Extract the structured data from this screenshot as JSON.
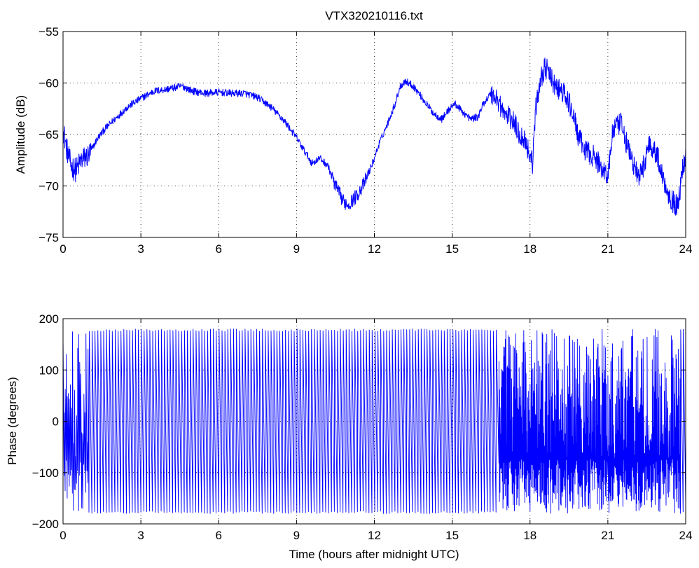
{
  "colors": {
    "series": "#0000ff",
    "axes": "#000000",
    "grid": "#000000",
    "background": "#ffffff"
  },
  "chart_data": [
    {
      "type": "line",
      "title": "VTX320210116.txt",
      "xlabel": "",
      "ylabel": "Amplitude (dB)",
      "xlim": [
        0,
        24
      ],
      "ylim": [
        -75,
        -55
      ],
      "x_ticks": [
        0,
        3,
        6,
        9,
        12,
        15,
        18,
        21,
        24
      ],
      "y_ticks": [
        -75,
        -70,
        -65,
        -60,
        -55
      ],
      "x_tick_labels": [
        "0",
        "3",
        "6",
        "9",
        "12",
        "15",
        "18",
        "21",
        "24"
      ],
      "y_tick_labels": [
        "−75",
        "−70",
        "−65",
        "−60",
        "−55"
      ],
      "grid": true,
      "series": [
        {
          "x": [
            0,
            0.15,
            0.3,
            0.5,
            0.7,
            1.0,
            1.3,
            1.6,
            2.0,
            2.5,
            3.0,
            3.5,
            4.0,
            4.6,
            5.0,
            5.5,
            6.0,
            6.5,
            7.0,
            7.5,
            8.0,
            8.5,
            9.0,
            9.3,
            9.6,
            9.9,
            10.2,
            10.5,
            10.8,
            11.0,
            11.3,
            11.6,
            11.9,
            12.2,
            12.5,
            12.8,
            13.0,
            13.2,
            13.5,
            13.8,
            14.0,
            14.3,
            14.6,
            14.9,
            15.1,
            15.4,
            15.7,
            16.0,
            16.2,
            16.5,
            16.8,
            17.0,
            17.3,
            17.6,
            17.8,
            18.0,
            18.1,
            18.2,
            18.4,
            18.6,
            18.8,
            19.0,
            19.3,
            19.6,
            19.9,
            20.1,
            20.4,
            20.7,
            21.0,
            21.2,
            21.5,
            21.8,
            22.0,
            22.2,
            22.4,
            22.6,
            22.9,
            23.1,
            23.3,
            23.5,
            23.7,
            23.9,
            24.0
          ],
          "y": [
            -64.5,
            -66.5,
            -68.0,
            -68.5,
            -67.5,
            -67.0,
            -65.5,
            -64.5,
            -63.5,
            -62.3,
            -61.5,
            -60.8,
            -60.6,
            -60.3,
            -60.8,
            -61.0,
            -60.9,
            -61.0,
            -61.0,
            -61.4,
            -62.3,
            -63.6,
            -65.3,
            -66.6,
            -67.8,
            -67.3,
            -68.0,
            -70.0,
            -71.5,
            -71.8,
            -71.0,
            -69.8,
            -68.0,
            -65.8,
            -64.0,
            -62.0,
            -60.3,
            -59.8,
            -60.3,
            -61.3,
            -62.0,
            -63.0,
            -63.5,
            -62.5,
            -62.0,
            -62.8,
            -63.5,
            -63.3,
            -62.0,
            -61.0,
            -61.8,
            -63.0,
            -63.5,
            -65.0,
            -65.5,
            -67.0,
            -67.8,
            -63.0,
            -59.5,
            -58.5,
            -59.5,
            -60.5,
            -61.0,
            -62.5,
            -65.5,
            -66.5,
            -67.0,
            -68.0,
            -69.0,
            -64.5,
            -64.0,
            -66.5,
            -68.0,
            -69.3,
            -67.8,
            -65.8,
            -67.0,
            -69.0,
            -70.5,
            -71.5,
            -72.0,
            -68.0,
            -67.0
          ]
        }
      ]
    },
    {
      "type": "line",
      "title": "",
      "xlabel": "Time (hours after midnight UTC)",
      "ylabel": "Phase (degrees)",
      "xlim": [
        0,
        24
      ],
      "ylim": [
        -200,
        200
      ],
      "x_ticks": [
        0,
        3,
        6,
        9,
        12,
        15,
        18,
        21,
        24
      ],
      "y_ticks": [
        -200,
        -100,
        0,
        100,
        200
      ],
      "x_tick_labels": [
        "0",
        "3",
        "6",
        "9",
        "12",
        "15",
        "18",
        "21",
        "24"
      ],
      "y_tick_labels": [
        "−200",
        "−100",
        "0",
        "100",
        "200"
      ],
      "grid": true,
      "series": [
        {
          "phase_wrap_range": [
            -180,
            180
          ],
          "segments": [
            {
              "x_start": 0.0,
              "x_end": 1.0,
              "cycles_per_hour": 25,
              "pattern": "noisy"
            },
            {
              "x_start": 1.0,
              "x_end": 16.8,
              "cycles_per_hour": 9,
              "pattern": "sawtooth"
            },
            {
              "x_start": 16.8,
              "x_end": 23.8,
              "cycles_per_hour": 45,
              "pattern": "noisy"
            },
            {
              "x_start": 23.8,
              "x_end": 24.0,
              "cycles_per_hour": 9,
              "pattern": "sawtooth"
            }
          ]
        }
      ]
    }
  ]
}
